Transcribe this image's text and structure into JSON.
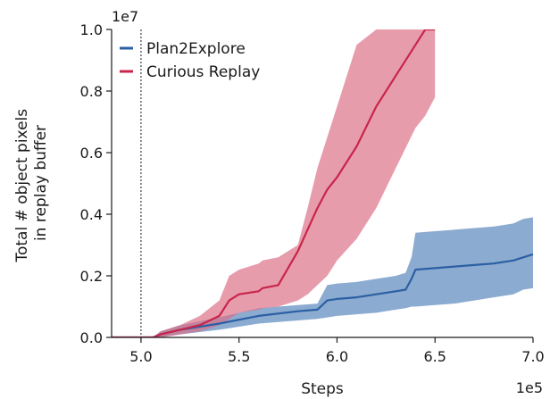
{
  "chart_data": {
    "type": "area",
    "xlabel": "Steps",
    "ylabel_lines": [
      "Total # object pixels",
      "in replay buffer"
    ],
    "x_offset_text": "1e5",
    "y_offset_text": "1e7",
    "xlim": [
      4.85,
      7.0
    ],
    "ylim": [
      0,
      1.0
    ],
    "xticks": [
      5.0,
      5.5,
      6.0,
      6.5,
      7.0
    ],
    "xtick_labels": [
      "5.0",
      "5.5",
      "6.0",
      "6.5",
      "7.0"
    ],
    "yticks": [
      0,
      0.2,
      0.4,
      0.6,
      0.8,
      1.0
    ],
    "ytick_labels": [
      "0.0",
      "0.2",
      "0.4",
      "0.6",
      "0.8",
      "1.0"
    ],
    "vline_x": 5.0,
    "legend_position": "top-left",
    "series": [
      {
        "name": "Plan2Explore",
        "color": "#2b5fa3",
        "band_color": "#5b88bc",
        "x": [
          4.85,
          5.06,
          5.1,
          5.2,
          5.4,
          5.6,
          5.8,
          5.9,
          5.95,
          6.0,
          6.1,
          6.2,
          6.3,
          6.35,
          6.38,
          6.4,
          6.5,
          6.6,
          6.7,
          6.8,
          6.9,
          6.95,
          7.0
        ],
        "mean": [
          0.0,
          0.0,
          0.01,
          0.025,
          0.045,
          0.07,
          0.085,
          0.09,
          0.12,
          0.125,
          0.13,
          0.14,
          0.15,
          0.155,
          0.19,
          0.22,
          0.225,
          0.23,
          0.235,
          0.24,
          0.25,
          0.26,
          0.27
        ],
        "lower": [
          0.0,
          0.0,
          0.0,
          0.01,
          0.025,
          0.045,
          0.055,
          0.06,
          0.065,
          0.07,
          0.075,
          0.08,
          0.09,
          0.095,
          0.1,
          0.1,
          0.105,
          0.11,
          0.12,
          0.13,
          0.14,
          0.155,
          0.16
        ],
        "upper": [
          0.0,
          0.0,
          0.02,
          0.04,
          0.065,
          0.095,
          0.105,
          0.11,
          0.17,
          0.175,
          0.18,
          0.19,
          0.2,
          0.21,
          0.26,
          0.34,
          0.345,
          0.35,
          0.355,
          0.36,
          0.37,
          0.385,
          0.39
        ]
      },
      {
        "name": "Curious Replay",
        "color": "#c8254a",
        "band_color": "#dc6d84",
        "x": [
          4.85,
          5.06,
          5.1,
          5.2,
          5.3,
          5.4,
          5.45,
          5.5,
          5.6,
          5.62,
          5.7,
          5.8,
          5.85,
          5.9,
          5.95,
          6.0,
          6.1,
          6.2,
          6.3,
          6.4,
          6.45,
          6.5
        ],
        "mean": [
          0.0,
          0.0,
          0.01,
          0.025,
          0.04,
          0.07,
          0.12,
          0.14,
          0.15,
          0.16,
          0.17,
          0.28,
          0.35,
          0.42,
          0.48,
          0.52,
          0.62,
          0.75,
          0.85,
          0.95,
          1.0,
          1.0
        ],
        "lower": [
          0.0,
          0.0,
          0.0,
          0.01,
          0.02,
          0.04,
          0.06,
          0.08,
          0.09,
          0.095,
          0.1,
          0.12,
          0.14,
          0.17,
          0.2,
          0.25,
          0.32,
          0.42,
          0.55,
          0.68,
          0.72,
          0.78
        ],
        "upper": [
          0.0,
          0.0,
          0.02,
          0.04,
          0.07,
          0.12,
          0.2,
          0.22,
          0.24,
          0.25,
          0.26,
          0.3,
          0.42,
          0.55,
          0.65,
          0.75,
          0.95,
          1.0,
          1.0,
          1.0,
          1.0,
          1.0
        ]
      }
    ]
  }
}
